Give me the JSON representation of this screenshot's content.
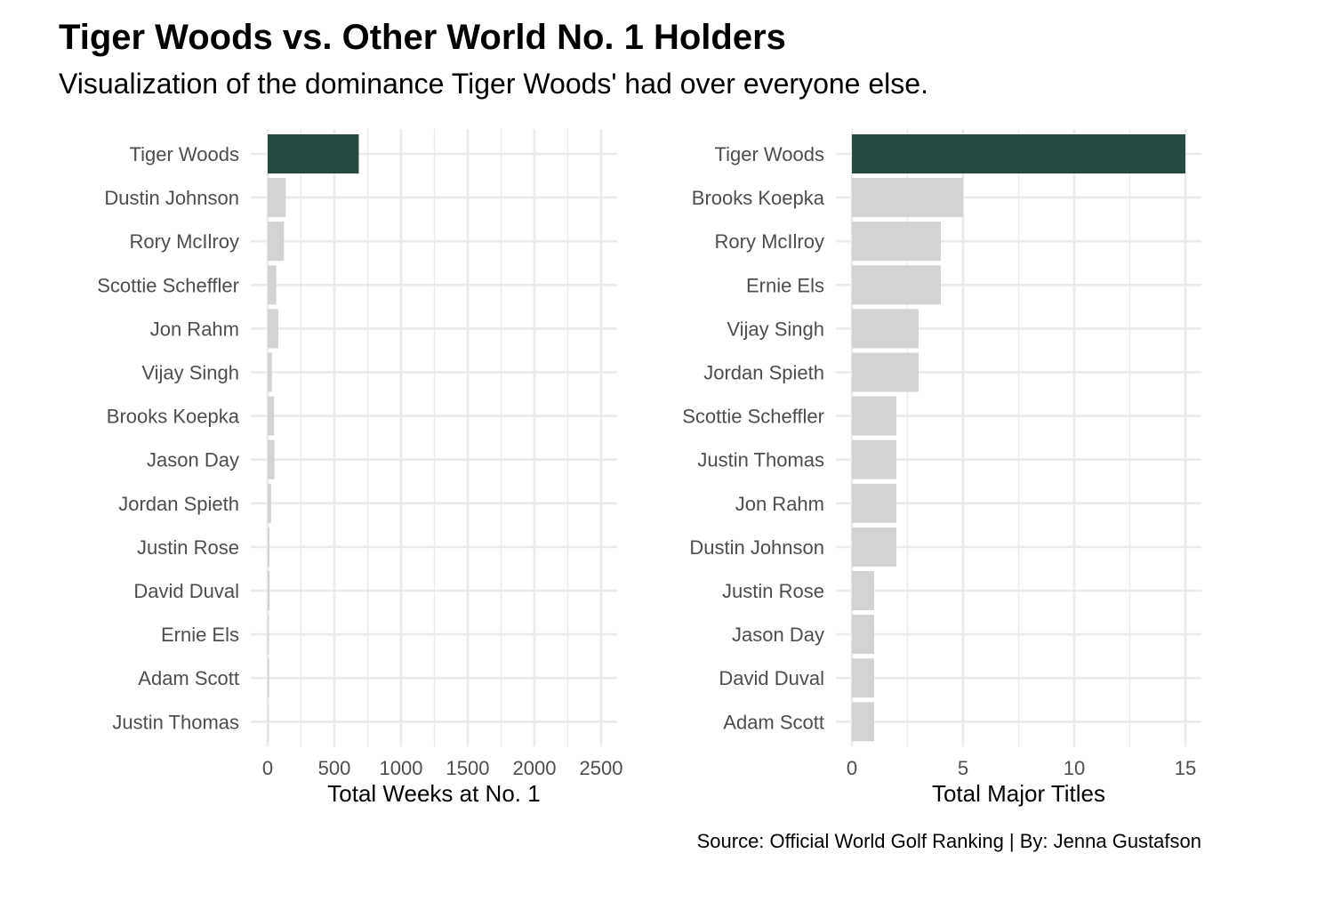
{
  "title": "Tiger Woods vs. Other World No. 1 Holders",
  "subtitle": "Visualization of the dominance Tiger Woods' had over everyone else.",
  "caption": "Source: Official World Golf Ranking | By: Jenna Gustafson",
  "colors": {
    "highlight": "#264a41",
    "other": "#d3d3d3",
    "grid": "#ebebeb",
    "axis_text": "#4d4d4d"
  },
  "chart_data": [
    {
      "type": "bar",
      "orientation": "horizontal",
      "xlabel": "Total Weeks at No. 1",
      "ylabel": "",
      "xlim": [
        0,
        2500
      ],
      "xticks": [
        "0",
        "500",
        "1000",
        "1500",
        "2000",
        "2500"
      ],
      "categories": [
        "Tiger Woods",
        "Dustin Johnson",
        "Rory McIlroy",
        "Scottie Scheffler",
        "Jon Rahm",
        "Vijay Singh",
        "Brooks Koepka",
        "Jason Day",
        "Jordan Spieth",
        "Justin Rose",
        "David Duval",
        "Ernie Els",
        "Adam Scott",
        "Justin Thomas"
      ],
      "values": [
        683,
        135,
        122,
        65,
        80,
        32,
        48,
        51,
        26,
        13,
        15,
        9,
        11,
        4
      ],
      "highlight": "Tiger Woods",
      "grid": true
    },
    {
      "type": "bar",
      "orientation": "horizontal",
      "xlabel": "Total Major Titles",
      "ylabel": "",
      "xlim": [
        0,
        15
      ],
      "xticks": [
        "0",
        "5",
        "10",
        "15"
      ],
      "categories": [
        "Tiger Woods",
        "Brooks Koepka",
        "Rory McIlroy",
        "Ernie Els",
        "Vijay Singh",
        "Jordan Spieth",
        "Scottie Scheffler",
        "Justin Thomas",
        "Jon Rahm",
        "Dustin Johnson",
        "Justin Rose",
        "Jason Day",
        "David Duval",
        "Adam Scott"
      ],
      "values": [
        15,
        5,
        4,
        4,
        3,
        3,
        2,
        2,
        2,
        2,
        1,
        1,
        1,
        1
      ],
      "highlight": "Tiger Woods",
      "grid": true
    }
  ]
}
